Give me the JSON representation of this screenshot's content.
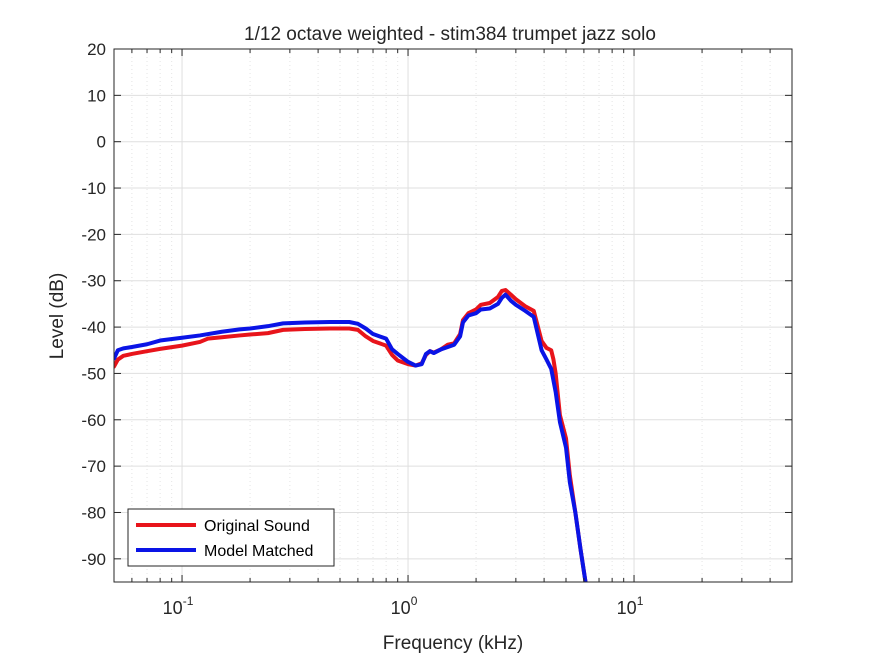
{
  "chart_data": {
    "type": "line",
    "title": "1/12 octave weighted - stim384 trumpet jazz solo",
    "xlabel": "Frequency (kHz)",
    "ylabel": "Level (dB)",
    "x_scale": "log",
    "xlim": [
      0.05,
      50
    ],
    "ylim": [
      -95,
      20
    ],
    "grid": true,
    "legend_position": "bottom-left",
    "x_ticks": [
      {
        "base": "10",
        "exp": "-1",
        "value": 0.1
      },
      {
        "base": "10",
        "exp": "0",
        "value": 1
      },
      {
        "base": "10",
        "exp": "1",
        "value": 10
      }
    ],
    "y_ticks": [
      "20",
      "10",
      "0",
      "-10",
      "-20",
      "-30",
      "-40",
      "-50",
      "-60",
      "-70",
      "-80",
      "-90"
    ],
    "series": [
      {
        "name": "Original Sound",
        "color": "#e8141b",
        "points": [
          [
            0.05,
            -48.5
          ],
          [
            0.052,
            -47
          ],
          [
            0.055,
            -46.2
          ],
          [
            0.06,
            -45.8
          ],
          [
            0.07,
            -45.2
          ],
          [
            0.08,
            -44.7
          ],
          [
            0.1,
            -44
          ],
          [
            0.12,
            -43.2
          ],
          [
            0.13,
            -42.5
          ],
          [
            0.15,
            -42.2
          ],
          [
            0.18,
            -41.8
          ],
          [
            0.2,
            -41.6
          ],
          [
            0.24,
            -41.3
          ],
          [
            0.28,
            -40.6
          ],
          [
            0.35,
            -40.4
          ],
          [
            0.45,
            -40.3
          ],
          [
            0.55,
            -40.3
          ],
          [
            0.6,
            -40.6
          ],
          [
            0.65,
            -42
          ],
          [
            0.7,
            -43
          ],
          [
            0.8,
            -44
          ],
          [
            0.85,
            -46
          ],
          [
            0.9,
            -47.2
          ],
          [
            1.0,
            -48
          ],
          [
            1.08,
            -48.3
          ],
          [
            1.15,
            -47.8
          ],
          [
            1.2,
            -46
          ],
          [
            1.25,
            -45.2
          ],
          [
            1.3,
            -45.5
          ],
          [
            1.4,
            -44.8
          ],
          [
            1.5,
            -43.8
          ],
          [
            1.6,
            -43.5
          ],
          [
            1.7,
            -41.5
          ],
          [
            1.75,
            -38.5
          ],
          [
            1.85,
            -37
          ],
          [
            2.0,
            -36.2
          ],
          [
            2.1,
            -35.2
          ],
          [
            2.3,
            -34.8
          ],
          [
            2.5,
            -33.5
          ],
          [
            2.6,
            -32.2
          ],
          [
            2.7,
            -32
          ],
          [
            2.85,
            -33
          ],
          [
            3.0,
            -34
          ],
          [
            3.3,
            -35.5
          ],
          [
            3.6,
            -36.5
          ],
          [
            3.9,
            -43
          ],
          [
            4.1,
            -44.5
          ],
          [
            4.3,
            -45
          ],
          [
            4.4,
            -47
          ],
          [
            4.5,
            -50
          ],
          [
            4.7,
            -59
          ],
          [
            5.0,
            -64
          ],
          [
            5.2,
            -72
          ],
          [
            5.5,
            -80
          ],
          [
            5.8,
            -88
          ],
          [
            6.1,
            -95
          ]
        ]
      },
      {
        "name": "Model Matched",
        "color": "#0a14e6",
        "points": [
          [
            0.05,
            -46.8
          ],
          [
            0.052,
            -45
          ],
          [
            0.055,
            -44.6
          ],
          [
            0.06,
            -44.3
          ],
          [
            0.07,
            -43.7
          ],
          [
            0.08,
            -42.9
          ],
          [
            0.1,
            -42.3
          ],
          [
            0.12,
            -41.8
          ],
          [
            0.15,
            -41
          ],
          [
            0.18,
            -40.5
          ],
          [
            0.2,
            -40.3
          ],
          [
            0.24,
            -39.8
          ],
          [
            0.28,
            -39.2
          ],
          [
            0.35,
            -39
          ],
          [
            0.45,
            -38.9
          ],
          [
            0.55,
            -38.9
          ],
          [
            0.6,
            -39.3
          ],
          [
            0.65,
            -40.3
          ],
          [
            0.7,
            -41.5
          ],
          [
            0.8,
            -42.5
          ],
          [
            0.85,
            -44.8
          ],
          [
            0.9,
            -45.8
          ],
          [
            1.0,
            -47.5
          ],
          [
            1.08,
            -48.3
          ],
          [
            1.15,
            -48
          ],
          [
            1.2,
            -45.8
          ],
          [
            1.25,
            -45.2
          ],
          [
            1.3,
            -45.6
          ],
          [
            1.4,
            -44.8
          ],
          [
            1.5,
            -44.3
          ],
          [
            1.6,
            -43.8
          ],
          [
            1.7,
            -42
          ],
          [
            1.75,
            -39
          ],
          [
            1.85,
            -37.5
          ],
          [
            2.0,
            -37
          ],
          [
            2.1,
            -36.2
          ],
          [
            2.3,
            -36
          ],
          [
            2.5,
            -35
          ],
          [
            2.6,
            -33.7
          ],
          [
            2.7,
            -33
          ],
          [
            2.85,
            -34.3
          ],
          [
            3.0,
            -35.2
          ],
          [
            3.3,
            -36.5
          ],
          [
            3.6,
            -37.8
          ],
          [
            3.9,
            -45
          ],
          [
            4.1,
            -47
          ],
          [
            4.3,
            -49
          ],
          [
            4.5,
            -54
          ],
          [
            4.7,
            -60.5
          ],
          [
            5.0,
            -66
          ],
          [
            5.2,
            -73.5
          ],
          [
            5.5,
            -80
          ],
          [
            5.8,
            -88
          ],
          [
            6.1,
            -95
          ]
        ]
      }
    ]
  }
}
